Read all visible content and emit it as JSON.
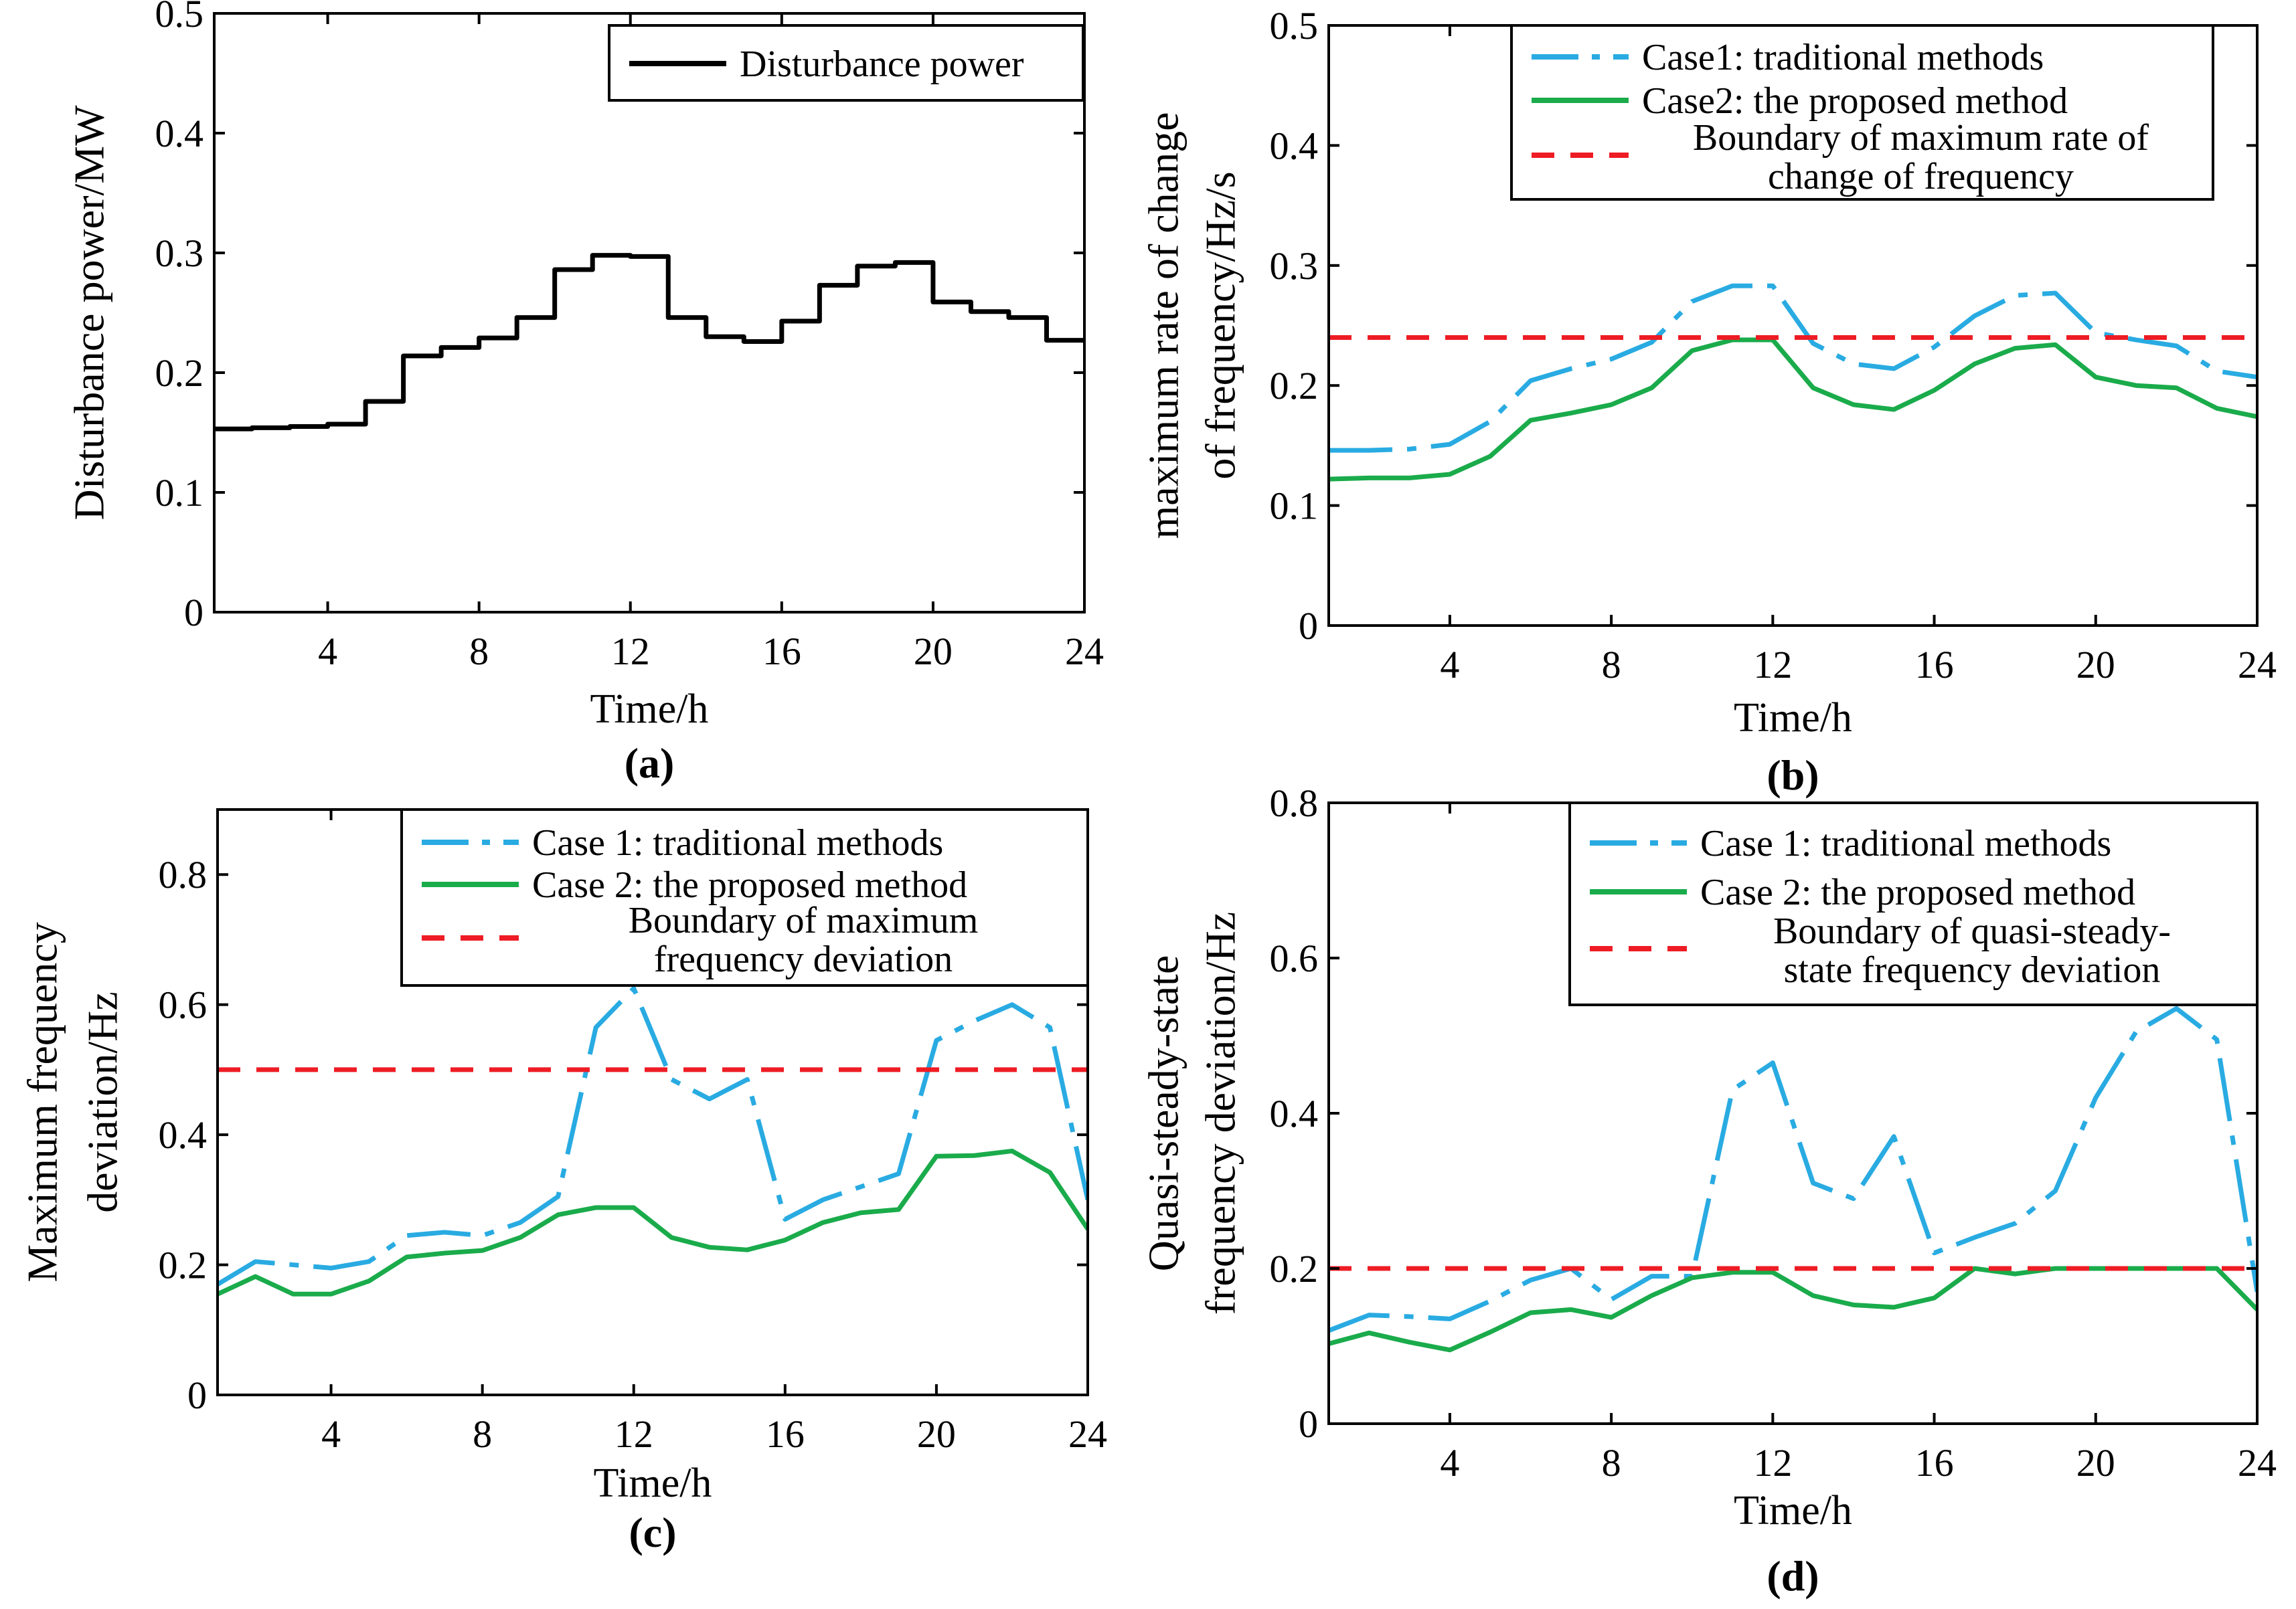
{
  "chart_data": [
    {
      "id": "a",
      "type": "line",
      "caption": "(a)",
      "xlabel": "Time/h",
      "ylabel": "Disturbance power/MW",
      "xlim": [
        1,
        24
      ],
      "ylim": [
        0,
        0.5
      ],
      "xticks": [
        4,
        8,
        12,
        16,
        20,
        24
      ],
      "yticks": [
        0,
        0.1,
        0.2,
        0.3,
        0.4,
        0.5
      ],
      "legend_position": "top-right",
      "series": [
        {
          "name": "Disturbance power",
          "style": "step",
          "color": "#000000",
          "x": [
            1,
            2,
            3,
            4,
            5,
            6,
            7,
            8,
            9,
            10,
            11,
            12,
            13,
            14,
            15,
            16,
            17,
            18,
            19,
            20,
            21,
            22,
            23,
            24
          ],
          "values": [
            0.153,
            0.154,
            0.155,
            0.157,
            0.176,
            0.214,
            0.221,
            0.229,
            0.246,
            0.286,
            0.298,
            0.297,
            0.246,
            0.23,
            0.226,
            0.243,
            0.273,
            0.289,
            0.292,
            0.259,
            0.251,
            0.246,
            0.227,
            0.227
          ]
        }
      ]
    },
    {
      "id": "b",
      "type": "line",
      "caption": "(b)",
      "xlabel": "Time/h",
      "ylabel": [
        "maximum rate of change",
        "of frequency/Hz/s"
      ],
      "xlim": [
        1,
        24
      ],
      "ylim": [
        0,
        0.5
      ],
      "xticks": [
        4,
        8,
        12,
        16,
        20,
        24
      ],
      "yticks": [
        0,
        0.1,
        0.2,
        0.3,
        0.4,
        0.5
      ],
      "legend_position": "top-right",
      "series": [
        {
          "name": "Case1: traditional methods",
          "style": "dashdot",
          "color": "#29abe2",
          "x": [
            1,
            2,
            3,
            4,
            5,
            6,
            7,
            8,
            9,
            10,
            11,
            12,
            13,
            14,
            15,
            16,
            17,
            18,
            19,
            20,
            21,
            22,
            23,
            24
          ],
          "values": [
            0.146,
            0.146,
            0.147,
            0.151,
            0.17,
            0.204,
            0.214,
            0.222,
            0.236,
            0.27,
            0.283,
            0.283,
            0.235,
            0.218,
            0.214,
            0.232,
            0.258,
            0.275,
            0.277,
            0.244,
            0.238,
            0.233,
            0.212,
            0.207
          ]
        },
        {
          "name": "Case2: the proposed method",
          "style": "solid",
          "color": "#1aab4b",
          "x": [
            1,
            2,
            3,
            4,
            5,
            6,
            7,
            8,
            9,
            10,
            11,
            12,
            13,
            14,
            15,
            16,
            17,
            18,
            19,
            20,
            21,
            22,
            23,
            24
          ],
          "values": [
            0.122,
            0.123,
            0.123,
            0.126,
            0.141,
            0.171,
            0.177,
            0.184,
            0.198,
            0.229,
            0.238,
            0.238,
            0.198,
            0.184,
            0.18,
            0.196,
            0.218,
            0.231,
            0.234,
            0.207,
            0.2,
            0.198,
            0.181,
            0.174
          ]
        },
        {
          "name": "Boundary of maximum rate of change of frequency",
          "legend_lines": [
            "Boundary of maximum rate of",
            "change of frequency"
          ],
          "style": "dashed",
          "color": "#ee1c24",
          "x": [
            1,
            24
          ],
          "values": [
            0.24,
            0.24
          ]
        }
      ]
    },
    {
      "id": "c",
      "type": "line",
      "caption": "(c)",
      "xlabel": "Time/h",
      "ylabel": [
        "Maximum frequency",
        "deviation/Hz"
      ],
      "xlim": [
        1,
        24
      ],
      "ylim": [
        0,
        0.9
      ],
      "xticks": [
        4,
        8,
        12,
        16,
        20,
        24
      ],
      "yticks": [
        0,
        0.2,
        0.4,
        0.6,
        0.8
      ],
      "legend_position": "top-right",
      "series": [
        {
          "name": "Case 1: traditional methods",
          "style": "dashdot",
          "color": "#29abe2",
          "x": [
            1,
            2,
            3,
            4,
            5,
            6,
            7,
            8,
            9,
            10,
            11,
            12,
            13,
            14,
            15,
            16,
            17,
            18,
            19,
            20,
            21,
            22,
            23,
            24
          ],
          "values": [
            0.17,
            0.205,
            0.2,
            0.195,
            0.205,
            0.245,
            0.25,
            0.245,
            0.265,
            0.305,
            0.565,
            0.625,
            0.485,
            0.455,
            0.485,
            0.27,
            0.3,
            0.32,
            0.34,
            0.545,
            0.575,
            0.6,
            0.565,
            0.3
          ]
        },
        {
          "name": "Case 2: the proposed method",
          "style": "solid",
          "color": "#1aab4b",
          "x": [
            1,
            2,
            3,
            4,
            5,
            6,
            7,
            8,
            9,
            10,
            11,
            12,
            13,
            14,
            15,
            16,
            17,
            18,
            19,
            20,
            21,
            22,
            23,
            24
          ],
          "values": [
            0.155,
            0.182,
            0.155,
            0.155,
            0.175,
            0.212,
            0.218,
            0.222,
            0.242,
            0.277,
            0.288,
            0.288,
            0.242,
            0.227,
            0.223,
            0.238,
            0.265,
            0.28,
            0.285,
            0.367,
            0.368,
            0.375,
            0.342,
            0.255
          ]
        },
        {
          "name": "Boundary of maximum frequency deviation",
          "legend_lines": [
            "Boundary of maximum",
            "frequency deviation"
          ],
          "style": "dashed",
          "color": "#ee1c24",
          "x": [
            1,
            24
          ],
          "values": [
            0.5,
            0.5
          ]
        }
      ]
    },
    {
      "id": "d",
      "type": "line",
      "caption": "(d)",
      "xlabel": "Time/h",
      "ylabel": [
        "Quasi-steady-state",
        "frequency deviation/Hz"
      ],
      "xlim": [
        1,
        24
      ],
      "ylim": [
        0,
        0.8
      ],
      "xticks": [
        4,
        8,
        12,
        16,
        20,
        24
      ],
      "yticks": [
        0,
        0.2,
        0.4,
        0.6,
        0.8
      ],
      "legend_position": "top-right",
      "series": [
        {
          "name": "Case 1: traditional methods",
          "style": "dashdot",
          "color": "#29abe2",
          "x": [
            1,
            2,
            3,
            4,
            5,
            6,
            7,
            8,
            9,
            10,
            11,
            12,
            13,
            14,
            15,
            16,
            17,
            18,
            19,
            20,
            21,
            22,
            23,
            24
          ],
          "values": [
            0.12,
            0.14,
            0.138,
            0.135,
            0.158,
            0.185,
            0.2,
            0.16,
            0.19,
            0.19,
            0.43,
            0.465,
            0.31,
            0.29,
            0.37,
            0.22,
            0.24,
            0.258,
            0.3,
            0.42,
            0.505,
            0.535,
            0.495,
            0.17
          ]
        },
        {
          "name": "Case 2: the proposed method",
          "style": "solid",
          "color": "#1aab4b",
          "x": [
            1,
            2,
            3,
            4,
            5,
            6,
            7,
            8,
            9,
            10,
            11,
            12,
            13,
            14,
            15,
            16,
            17,
            18,
            19,
            20,
            21,
            22,
            23,
            24
          ],
          "values": [
            0.103,
            0.117,
            0.105,
            0.095,
            0.118,
            0.143,
            0.147,
            0.137,
            0.165,
            0.188,
            0.195,
            0.195,
            0.165,
            0.153,
            0.15,
            0.162,
            0.2,
            0.193,
            0.2,
            0.2,
            0.2,
            0.2,
            0.2,
            0.147
          ]
        },
        {
          "name": "Boundary of quasi-steady-state frequency deviation",
          "legend_lines": [
            "Boundary of quasi-steady-",
            "state frequency deviation"
          ],
          "style": "dashed",
          "color": "#ee1c24",
          "x": [
            1,
            24
          ],
          "values": [
            0.2,
            0.2
          ]
        }
      ]
    }
  ]
}
